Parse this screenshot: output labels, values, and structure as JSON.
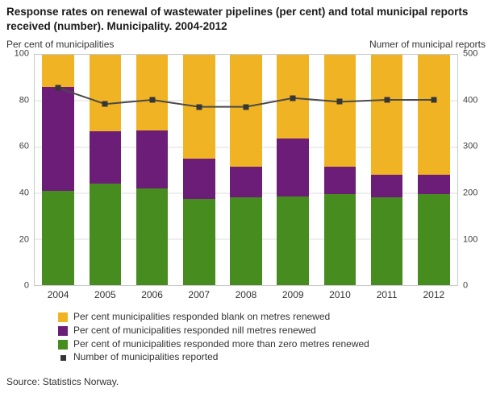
{
  "chart_data": {
    "type": "bar",
    "stacked": true,
    "title": "Response rates on renewal of wastewater pipelines (per cent) and total municipal reports received (number). Municipality. 2004-2012",
    "ylabel_left": "Per cent of municipalities",
    "ylabel_right": "Numer of municipal reports",
    "categories": [
      "2004",
      "2005",
      "2006",
      "2007",
      "2008",
      "2009",
      "2010",
      "2011",
      "2012"
    ],
    "series": [
      {
        "name": "Per cent of municipalities responded more than zero metres renewed",
        "color": "#468c1f",
        "values": [
          41,
          44,
          42,
          37.5,
          38,
          38.5,
          39.5,
          38,
          39.5
        ]
      },
      {
        "name": "Per cent of municipalities responded nill metres renewed",
        "color": "#6c1d78",
        "values": [
          45,
          23,
          25,
          17.5,
          13.5,
          25,
          12,
          10,
          8.5
        ]
      },
      {
        "name": "Per cent municipalities responded blank on metres renewed",
        "color": "#f0b323",
        "values": [
          14,
          33,
          33,
          45,
          48.5,
          36.5,
          48.5,
          52,
          52
        ]
      }
    ],
    "line_series": {
      "name": "Number of municipalities reported",
      "color": "#4a4a4a",
      "axis": "right",
      "values": [
        428,
        393,
        402,
        387,
        387,
        406,
        398,
        402,
        402
      ]
    },
    "ylim_left": [
      0,
      100
    ],
    "yticks_left": [
      0,
      20,
      40,
      60,
      80,
      100
    ],
    "ylim_right": [
      0,
      500
    ],
    "yticks_right": [
      0,
      100,
      200,
      300,
      400,
      500
    ],
    "grid": true,
    "legend_position": "bottom"
  },
  "legend": {
    "items": [
      {
        "label": "Per cent municipalities responded blank on metres renewed",
        "color": "#f0b323",
        "type": "box"
      },
      {
        "label": "Per cent of municipalities responded nill metres renewed",
        "color": "#6c1d78",
        "type": "box"
      },
      {
        "label": "Per cent of municipalities responded more than zero metres renewed",
        "color": "#468c1f",
        "type": "box"
      },
      {
        "label": "Number of municipalities reported",
        "color": "#363636",
        "type": "marker"
      }
    ]
  },
  "source": "Source: Statistics Norway."
}
